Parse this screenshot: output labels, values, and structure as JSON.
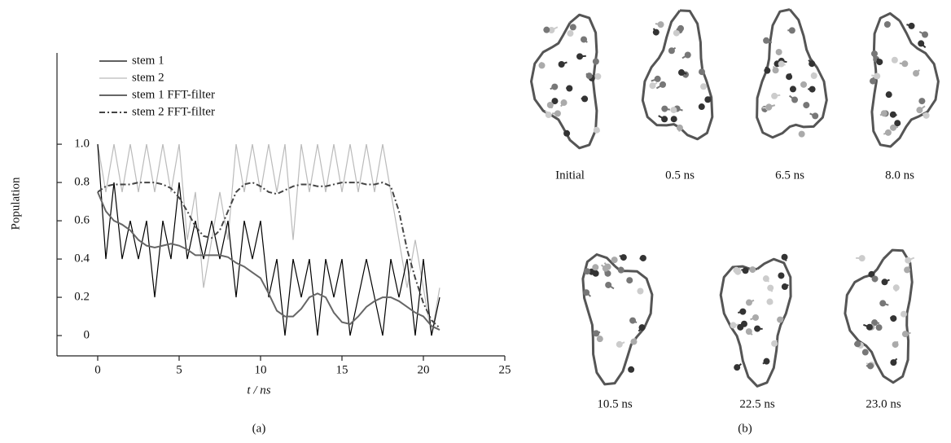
{
  "chart_data": {
    "type": "line",
    "x_label": "t / ns",
    "y_label": "Population",
    "x": [
      0,
      0.5,
      1,
      1.5,
      2,
      2.5,
      3,
      3.5,
      4,
      4.5,
      5,
      5.5,
      6,
      6.5,
      7,
      7.5,
      8,
      8.5,
      9,
      9.5,
      10,
      10.5,
      11,
      11.5,
      12,
      12.5,
      13,
      13.5,
      14,
      14.5,
      15,
      15.5,
      16,
      16.5,
      17,
      17.5,
      18,
      18.5,
      19,
      19.5,
      20,
      20.5,
      21
    ],
    "series": [
      {
        "name": "stem 1",
        "color": "#000000",
        "values": [
          1.0,
          0.4,
          0.8,
          0.4,
          0.6,
          0.4,
          0.6,
          0.2,
          0.6,
          0.4,
          0.8,
          0.4,
          0.6,
          0.4,
          0.6,
          0.4,
          0.6,
          0.2,
          0.6,
          0.4,
          0.6,
          0.2,
          0.4,
          0,
          0.4,
          0.2,
          0.4,
          0,
          0.4,
          0.2,
          0.4,
          0,
          0.2,
          0.4,
          0.2,
          0,
          0.4,
          0.2,
          0.4,
          0,
          0.4,
          0,
          0.2
        ]
      },
      {
        "name": "stem 2",
        "color": "#bbbbbb",
        "values": [
          1.0,
          0.75,
          1.0,
          0.75,
          1.0,
          0.75,
          1.0,
          0.75,
          1.0,
          0.75,
          1.0,
          0.5,
          0.75,
          0.25,
          0.5,
          0.75,
          0.5,
          1.0,
          0.75,
          1.0,
          0.75,
          1.0,
          0.75,
          1.0,
          0.5,
          1.0,
          0.75,
          1.0,
          0.75,
          1.0,
          0.75,
          1.0,
          0.75,
          1.0,
          0.75,
          1.0,
          0.75,
          0.5,
          0.25,
          0.5,
          0.25,
          0,
          0.25
        ]
      },
      {
        "name": "stem 1 FFT-filter",
        "color": "#666666",
        "values": [
          0.75,
          0.65,
          0.6,
          0.58,
          0.55,
          0.5,
          0.47,
          0.46,
          0.47,
          0.48,
          0.47,
          0.45,
          0.42,
          0.42,
          0.42,
          0.42,
          0.41,
          0.38,
          0.36,
          0.33,
          0.3,
          0.22,
          0.13,
          0.1,
          0.1,
          0.14,
          0.2,
          0.22,
          0.2,
          0.12,
          0.07,
          0.06,
          0.1,
          0.15,
          0.18,
          0.2,
          0.2,
          0.18,
          0.15,
          0.12,
          0.1,
          0.05,
          0.03
        ]
      },
      {
        "name": "stem 2 FFT-filter",
        "color": "#444444",
        "dash": "dash-dot",
        "values": [
          0.75,
          0.78,
          0.79,
          0.79,
          0.79,
          0.8,
          0.8,
          0.8,
          0.79,
          0.77,
          0.72,
          0.65,
          0.57,
          0.52,
          0.51,
          0.55,
          0.65,
          0.75,
          0.79,
          0.8,
          0.78,
          0.75,
          0.74,
          0.76,
          0.78,
          0.79,
          0.79,
          0.78,
          0.78,
          0.79,
          0.8,
          0.8,
          0.8,
          0.79,
          0.79,
          0.8,
          0.78,
          0.65,
          0.45,
          0.3,
          0.17,
          0.08,
          0.04
        ]
      }
    ],
    "xlim": [
      -2.5,
      25
    ],
    "xticks": [
      0,
      5,
      10,
      15,
      20,
      25
    ],
    "ylim": [
      -0.106,
      1.477
    ],
    "yticks": [
      0,
      0.2,
      0.4,
      0.6,
      0.8,
      {
        "value": 1,
        "label": "1.0"
      }
    ],
    "legend": "top-left"
  },
  "panel_labels": [
    "(a)",
    "(b)"
  ],
  "snapshots": [
    "Initial",
    "0.5 ns",
    "6.5 ns",
    "8.0 ns",
    "10.5 ns",
    "22.5 ns",
    "23.0 ns"
  ]
}
